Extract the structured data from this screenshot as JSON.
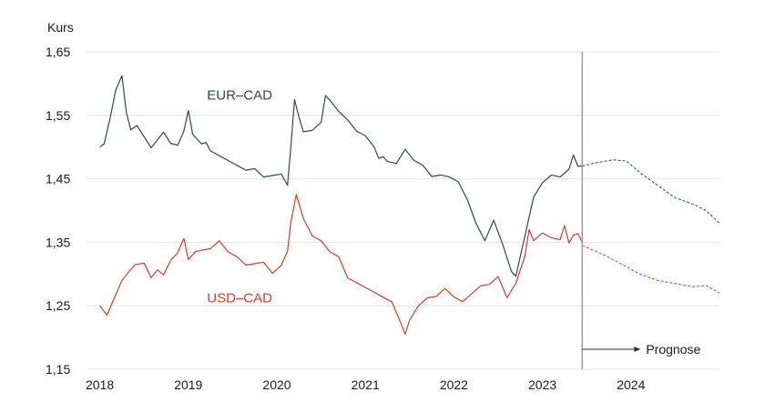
{
  "chart_data": {
    "type": "line",
    "ylabel": "Kurs",
    "ylim": [
      1.15,
      1.65
    ],
    "yticks": [
      "1,15",
      "1,25",
      "1,35",
      "1,45",
      "1,55",
      "1,65"
    ],
    "xlim": [
      2017.85,
      2025.0
    ],
    "xticks": [
      "2018",
      "2019",
      "2020",
      "2021",
      "2022",
      "2023",
      "2024"
    ],
    "grid": "horizontal",
    "forecast_start": 2023.45,
    "forecast_label": "Prognose",
    "series": [
      {
        "name": "EUR–CAD",
        "color": "#2e4a4a",
        "x": [
          2018.0,
          2018.05,
          2018.12,
          2018.18,
          2018.25,
          2018.3,
          2018.35,
          2018.42,
          2018.5,
          2018.58,
          2018.65,
          2018.72,
          2018.8,
          2018.88,
          2018.95,
          2019.0,
          2019.05,
          2019.1,
          2019.15,
          2019.2,
          2019.25,
          2019.35,
          2019.45,
          2019.55,
          2019.65,
          2019.75,
          2019.85,
          2019.95,
          2020.05,
          2020.12,
          2020.16,
          2020.2,
          2020.25,
          2020.3,
          2020.4,
          2020.5,
          2020.55,
          2020.6,
          2020.7,
          2020.8,
          2020.9,
          2021.0,
          2021.1,
          2021.15,
          2021.2,
          2021.25,
          2021.35,
          2021.45,
          2021.55,
          2021.65,
          2021.75,
          2021.85,
          2021.95,
          2022.05,
          2022.15,
          2022.25,
          2022.35,
          2022.45,
          2022.55,
          2022.65,
          2022.7,
          2022.8,
          2022.9,
          2023.0,
          2023.1,
          2023.2,
          2023.3,
          2023.35,
          2023.4,
          2023.45
        ],
        "y": [
          1.5,
          1.51,
          1.55,
          1.59,
          1.61,
          1.55,
          1.52,
          1.54,
          1.52,
          1.5,
          1.51,
          1.52,
          1.5,
          1.51,
          1.53,
          1.56,
          1.52,
          1.51,
          1.5,
          1.5,
          1.5,
          1.49,
          1.48,
          1.47,
          1.46,
          1.46,
          1.46,
          1.46,
          1.46,
          1.44,
          1.5,
          1.57,
          1.54,
          1.53,
          1.53,
          1.54,
          1.58,
          1.57,
          1.55,
          1.55,
          1.53,
          1.52,
          1.5,
          1.48,
          1.48,
          1.47,
          1.48,
          1.5,
          1.48,
          1.47,
          1.45,
          1.45,
          1.46,
          1.45,
          1.42,
          1.38,
          1.35,
          1.38,
          1.34,
          1.31,
          1.3,
          1.36,
          1.42,
          1.44,
          1.45,
          1.46,
          1.47,
          1.49,
          1.47,
          1.47
        ]
      },
      {
        "name": "USD–CAD",
        "color": "#c8412a",
        "x": [
          2018.0,
          2018.08,
          2018.15,
          2018.25,
          2018.32,
          2018.4,
          2018.5,
          2018.58,
          2018.65,
          2018.72,
          2018.8,
          2018.88,
          2018.95,
          2019.0,
          2019.08,
          2019.15,
          2019.25,
          2019.35,
          2019.45,
          2019.55,
          2019.65,
          2019.75,
          2019.85,
          2019.95,
          2020.05,
          2020.12,
          2020.16,
          2020.22,
          2020.3,
          2020.4,
          2020.5,
          2020.6,
          2020.7,
          2020.8,
          2020.9,
          2021.0,
          2021.1,
          2021.2,
          2021.3,
          2021.4,
          2021.45,
          2021.5,
          2021.6,
          2021.7,
          2021.8,
          2021.9,
          2022.0,
          2022.1,
          2022.2,
          2022.3,
          2022.4,
          2022.5,
          2022.6,
          2022.7,
          2022.8,
          2022.85,
          2022.9,
          2023.0,
          2023.1,
          2023.2,
          2023.25,
          2023.3,
          2023.35,
          2023.4,
          2023.45
        ],
        "y": [
          1.25,
          1.24,
          1.26,
          1.29,
          1.3,
          1.31,
          1.31,
          1.3,
          1.31,
          1.3,
          1.32,
          1.33,
          1.35,
          1.33,
          1.34,
          1.34,
          1.34,
          1.35,
          1.33,
          1.32,
          1.32,
          1.32,
          1.32,
          1.3,
          1.31,
          1.33,
          1.39,
          1.43,
          1.39,
          1.36,
          1.35,
          1.33,
          1.32,
          1.3,
          1.29,
          1.28,
          1.27,
          1.26,
          1.25,
          1.23,
          1.21,
          1.23,
          1.25,
          1.26,
          1.26,
          1.27,
          1.27,
          1.26,
          1.27,
          1.28,
          1.28,
          1.29,
          1.27,
          1.29,
          1.33,
          1.37,
          1.35,
          1.36,
          1.35,
          1.36,
          1.38,
          1.35,
          1.36,
          1.36,
          1.35
        ]
      },
      {
        "name": "EUR–CAD Prognose",
        "color": "#2e4a4a",
        "style": "dashed",
        "x": [
          2023.45,
          2023.6,
          2023.8,
          2023.95,
          2024.1,
          2024.3,
          2024.5,
          2024.7,
          2024.85,
          2025.0
        ],
        "y": [
          1.47,
          1.475,
          1.48,
          1.478,
          1.46,
          1.44,
          1.42,
          1.41,
          1.4,
          1.38
        ]
      },
      {
        "name": "USD–CAD Prognose",
        "color": "#c8412a",
        "style": "dashed",
        "x": [
          2023.45,
          2023.7,
          2023.9,
          2024.1,
          2024.3,
          2024.5,
          2024.7,
          2024.85,
          2025.0
        ],
        "y": [
          1.345,
          1.33,
          1.315,
          1.3,
          1.29,
          1.285,
          1.28,
          1.282,
          1.27
        ]
      }
    ],
    "annotations": [
      {
        "text": "EUR–CAD",
        "x": 2018.1,
        "y": 1.575,
        "color": "#2e4a4a"
      },
      {
        "text": "USD–CAD",
        "x": 2018.1,
        "y": 1.255,
        "color": "#c8412a"
      }
    ]
  }
}
